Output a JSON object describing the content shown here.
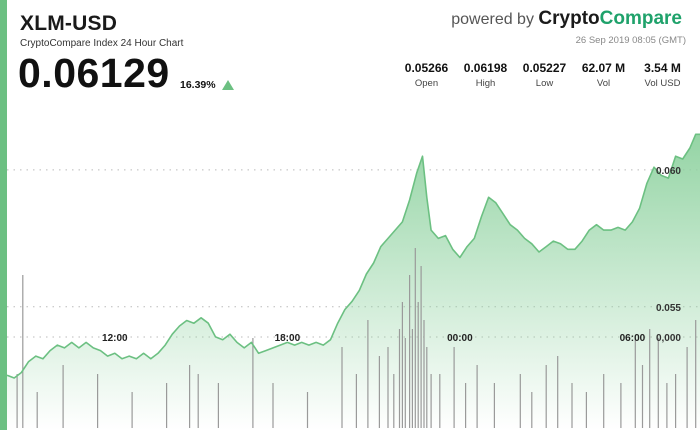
{
  "header": {
    "pair": "XLM-USD",
    "subtitle": "CryptoCompare Index 24 Hour Chart",
    "price": "0.06129",
    "change": "16.39%",
    "powered_by": "powered by",
    "brand_part1": "Crypto",
    "brand_part2": "Compare",
    "timestamp": "26 Sep 2019 08:05 (GMT)"
  },
  "stats": [
    {
      "value": "0.05266",
      "label": "Open"
    },
    {
      "value": "0.06198",
      "label": "High"
    },
    {
      "value": "0.05227",
      "label": "Low"
    },
    {
      "value": "62.07 M",
      "label": "Vol"
    },
    {
      "value": "3.54 M",
      "label": "Vol USD"
    }
  ],
  "colors": {
    "line": "#6cc082",
    "area_top": "#8fd2a0",
    "volume": "#9a9a9a",
    "accent": "#1fa26b"
  },
  "chart_data": {
    "type": "area",
    "title": "XLM-USD",
    "subtitle": "CryptoCompare Index 24 Hour Chart",
    "x_unit": "hour",
    "x_ticks": [
      {
        "label": "12:00",
        "x": 12
      },
      {
        "label": "18:00",
        "x": 18
      },
      {
        "label": "00:00",
        "x": 24
      },
      {
        "label": "06:00",
        "x": 30
      }
    ],
    "xlim": [
      8.25,
      32.35
    ],
    "ylim": [
      0.0505,
      0.0627
    ],
    "y_ticks": [
      {
        "label": "0.060",
        "value": 0.06
      },
      {
        "label": "0.055",
        "value": 0.055
      }
    ],
    "volume_axis_label": "0,000",
    "grid": true,
    "series": [
      {
        "values": [
          [
            8.25,
            0.0525
          ],
          [
            8.5,
            0.0524
          ],
          [
            8.75,
            0.0526
          ],
          [
            9.0,
            0.053
          ],
          [
            9.25,
            0.0532
          ],
          [
            9.5,
            0.0531
          ],
          [
            9.75,
            0.0534
          ],
          [
            10.0,
            0.0536
          ],
          [
            10.25,
            0.0535
          ],
          [
            10.5,
            0.0537
          ],
          [
            10.75,
            0.0535
          ],
          [
            11.0,
            0.0537
          ],
          [
            11.25,
            0.0535
          ],
          [
            11.5,
            0.0534
          ],
          [
            11.75,
            0.0532
          ],
          [
            12.0,
            0.0533
          ],
          [
            12.25,
            0.0531
          ],
          [
            12.5,
            0.0532
          ],
          [
            12.75,
            0.0531
          ],
          [
            13.0,
            0.0533
          ],
          [
            13.25,
            0.0531
          ],
          [
            13.5,
            0.0533
          ],
          [
            13.75,
            0.0536
          ],
          [
            14.0,
            0.054
          ],
          [
            14.25,
            0.0543
          ],
          [
            14.5,
            0.0545
          ],
          [
            14.75,
            0.0544
          ],
          [
            15.0,
            0.0546
          ],
          [
            15.25,
            0.0544
          ],
          [
            15.5,
            0.0539
          ],
          [
            15.75,
            0.0538
          ],
          [
            16.0,
            0.054
          ],
          [
            16.25,
            0.0537
          ],
          [
            16.5,
            0.0535
          ],
          [
            16.75,
            0.0537
          ],
          [
            17.0,
            0.0533
          ],
          [
            17.25,
            0.0534
          ],
          [
            17.5,
            0.0535
          ],
          [
            17.75,
            0.0536
          ],
          [
            18.0,
            0.0537
          ],
          [
            18.25,
            0.0536
          ],
          [
            18.5,
            0.0537
          ],
          [
            18.75,
            0.0536
          ],
          [
            19.0,
            0.0537
          ],
          [
            19.25,
            0.0536
          ],
          [
            19.5,
            0.0538
          ],
          [
            19.75,
            0.0544
          ],
          [
            20.0,
            0.0549
          ],
          [
            20.25,
            0.0552
          ],
          [
            20.5,
            0.0556
          ],
          [
            20.75,
            0.0562
          ],
          [
            21.0,
            0.0566
          ],
          [
            21.25,
            0.0572
          ],
          [
            21.5,
            0.0575
          ],
          [
            21.75,
            0.0578
          ],
          [
            22.0,
            0.0581
          ],
          [
            22.25,
            0.0589
          ],
          [
            22.5,
            0.0599
          ],
          [
            22.7,
            0.0605
          ],
          [
            22.85,
            0.059
          ],
          [
            23.0,
            0.0578
          ],
          [
            23.25,
            0.0575
          ],
          [
            23.5,
            0.0576
          ],
          [
            23.75,
            0.0571
          ],
          [
            24.0,
            0.0568
          ],
          [
            24.25,
            0.0572
          ],
          [
            24.5,
            0.0575
          ],
          [
            24.75,
            0.0583
          ],
          [
            25.0,
            0.059
          ],
          [
            25.25,
            0.0588
          ],
          [
            25.5,
            0.0584
          ],
          [
            25.75,
            0.058
          ],
          [
            26.0,
            0.0578
          ],
          [
            26.25,
            0.0575
          ],
          [
            26.5,
            0.0573
          ],
          [
            26.75,
            0.057
          ],
          [
            27.0,
            0.0572
          ],
          [
            27.25,
            0.0574
          ],
          [
            27.5,
            0.0573
          ],
          [
            27.75,
            0.0571
          ],
          [
            28.0,
            0.0571
          ],
          [
            28.25,
            0.0574
          ],
          [
            28.5,
            0.0578
          ],
          [
            28.75,
            0.058
          ],
          [
            29.0,
            0.0578
          ],
          [
            29.25,
            0.0578
          ],
          [
            29.5,
            0.0579
          ],
          [
            29.75,
            0.0578
          ],
          [
            30.0,
            0.0581
          ],
          [
            30.25,
            0.0586
          ],
          [
            30.5,
            0.0595
          ],
          [
            30.75,
            0.0601
          ],
          [
            31.0,
            0.0598
          ],
          [
            31.25,
            0.0597
          ],
          [
            31.5,
            0.0605
          ],
          [
            31.75,
            0.0604
          ],
          [
            32.0,
            0.0608
          ],
          [
            32.2,
            0.0613
          ],
          [
            32.35,
            0.0613
          ]
        ]
      }
    ],
    "volume": [
      [
        8.6,
        0.3
      ],
      [
        8.8,
        0.85
      ],
      [
        9.3,
        0.2
      ],
      [
        10.2,
        0.35
      ],
      [
        11.4,
        0.3
      ],
      [
        12.6,
        0.2
      ],
      [
        13.8,
        0.25
      ],
      [
        14.6,
        0.35
      ],
      [
        14.9,
        0.3
      ],
      [
        15.6,
        0.25
      ],
      [
        16.8,
        0.5
      ],
      [
        17.5,
        0.25
      ],
      [
        18.7,
        0.2
      ],
      [
        19.9,
        0.45
      ],
      [
        20.4,
        0.3
      ],
      [
        20.8,
        0.6
      ],
      [
        21.2,
        0.4
      ],
      [
        21.5,
        0.45
      ],
      [
        21.7,
        0.3
      ],
      [
        21.9,
        0.55
      ],
      [
        22.0,
        0.7
      ],
      [
        22.1,
        0.5
      ],
      [
        22.25,
        0.85
      ],
      [
        22.35,
        0.55
      ],
      [
        22.45,
        1.0
      ],
      [
        22.55,
        0.7
      ],
      [
        22.65,
        0.9
      ],
      [
        22.75,
        0.6
      ],
      [
        22.85,
        0.45
      ],
      [
        23.0,
        0.3
      ],
      [
        23.3,
        0.3
      ],
      [
        23.8,
        0.45
      ],
      [
        24.2,
        0.25
      ],
      [
        24.6,
        0.35
      ],
      [
        25.2,
        0.25
      ],
      [
        26.1,
        0.3
      ],
      [
        26.5,
        0.2
      ],
      [
        27.0,
        0.35
      ],
      [
        27.4,
        0.4
      ],
      [
        27.9,
        0.25
      ],
      [
        28.4,
        0.2
      ],
      [
        29.0,
        0.3
      ],
      [
        29.6,
        0.25
      ],
      [
        30.1,
        0.5
      ],
      [
        30.35,
        0.35
      ],
      [
        30.6,
        0.55
      ],
      [
        30.9,
        0.5
      ],
      [
        31.2,
        0.25
      ],
      [
        31.5,
        0.3
      ],
      [
        31.9,
        0.45
      ],
      [
        32.2,
        0.6
      ]
    ]
  }
}
